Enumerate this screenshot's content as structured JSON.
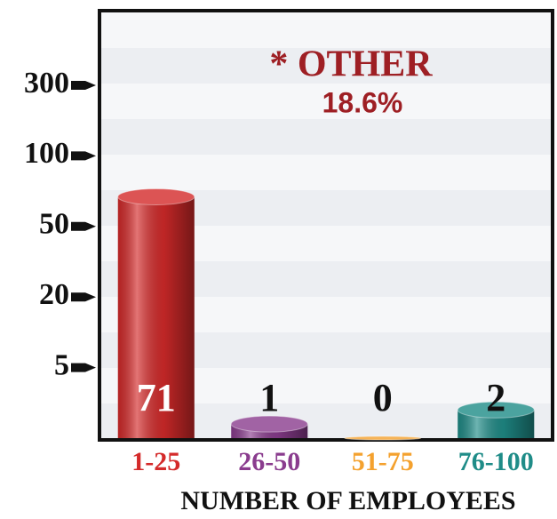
{
  "chart_data": {
    "type": "bar",
    "annotation": "* OTHER",
    "annotation_value": "18.6%",
    "xlabel": "NUMBER OF EMPLOYEES",
    "categories": [
      "1-25",
      "26-50",
      "51-75",
      "76-100"
    ],
    "values": [
      71,
      1,
      0,
      2
    ],
    "colors": [
      "#d42a2a",
      "#8a3c8e",
      "#f4a12e",
      "#1f8c88"
    ],
    "ylim": [
      0,
      300
    ],
    "yticks": [
      5,
      20,
      50,
      100,
      300
    ]
  }
}
